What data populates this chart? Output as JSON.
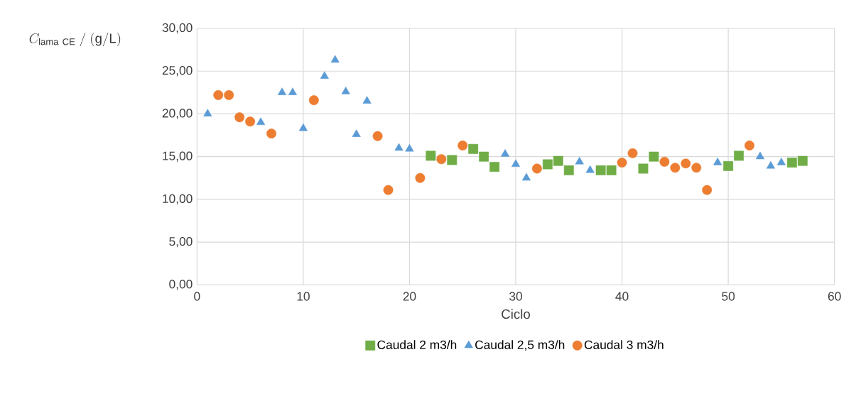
{
  "chart_data": {
    "type": "scatter",
    "xlabel": "Ciclo",
    "ylabel": "C_{\\mathrm{lama\\ CE}}\\ /\\ (\\mathrm{g/L})",
    "xlim": [
      0,
      60
    ],
    "xticks": [
      0,
      10,
      20,
      30,
      40,
      50,
      60
    ],
    "ylim": [
      0,
      30
    ],
    "yticks": [
      {
        "value": 0,
        "label": "0,00"
      },
      {
        "value": 5,
        "label": "5,00"
      },
      {
        "value": 10,
        "label": "10,00"
      },
      {
        "value": 15,
        "label": "15,00"
      },
      {
        "value": 20,
        "label": "20,00"
      },
      {
        "value": 25,
        "label": "25,00"
      },
      {
        "value": 30,
        "label": "30,00"
      }
    ],
    "grid": true,
    "legend": "bottom",
    "series": [
      {
        "name": "Caudal 2 m3/h",
        "color": "#70ad47",
        "marker": "square",
        "x": [
          22,
          24,
          26,
          27,
          28,
          33,
          34,
          35,
          38,
          39,
          42,
          43,
          50,
          51,
          56,
          57
        ],
        "values": [
          15.1,
          14.6,
          15.9,
          15.0,
          13.8,
          14.1,
          14.5,
          13.4,
          13.4,
          13.4,
          13.6,
          15.0,
          13.9,
          15.1,
          14.3,
          14.5
        ]
      },
      {
        "name": "Caudal 2,5 m3/h",
        "color": "#5b9bd5",
        "marker": "triangle",
        "x": [
          1,
          6,
          8,
          9,
          10,
          12,
          13,
          14,
          15,
          16,
          19,
          20,
          29,
          30,
          31,
          36,
          37,
          49,
          53,
          54,
          55
        ],
        "values": [
          20.0,
          19.0,
          22.5,
          22.5,
          18.3,
          24.4,
          26.3,
          22.6,
          17.6,
          21.5,
          16.0,
          15.9,
          15.3,
          14.1,
          12.5,
          14.4,
          13.4,
          14.3,
          15.0,
          13.9,
          14.3
        ]
      },
      {
        "name": "Caudal 3 m3/h",
        "color": "#ed7d31",
        "marker": "circle",
        "x": [
          2,
          3,
          4,
          5,
          7,
          11,
          17,
          18,
          21,
          23,
          25,
          32,
          40,
          41,
          44,
          45,
          46,
          47,
          48,
          52
        ],
        "values": [
          22.2,
          22.2,
          19.6,
          19.1,
          17.7,
          21.6,
          17.4,
          11.1,
          12.5,
          14.7,
          16.3,
          13.6,
          14.3,
          15.4,
          14.4,
          13.7,
          14.2,
          13.7,
          11.1,
          16.3
        ]
      }
    ]
  }
}
